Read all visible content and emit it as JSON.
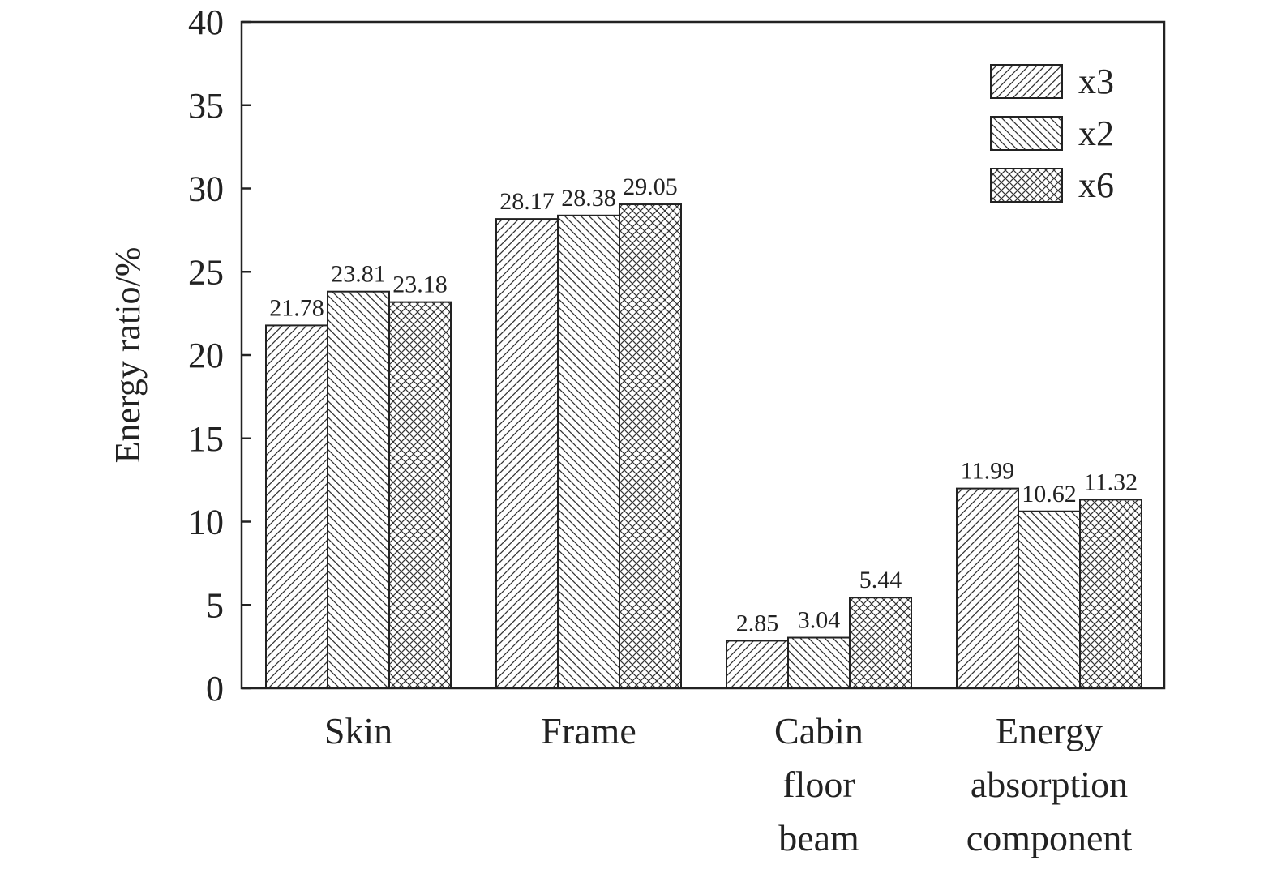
{
  "chart_data": {
    "type": "bar",
    "ylabel": "Energy ratio/%",
    "xlabel": "",
    "ylim": [
      0,
      40
    ],
    "yticks": [
      0,
      5,
      10,
      15,
      20,
      25,
      30,
      35,
      40
    ],
    "grid": false,
    "legend_position": "top-right",
    "categories": [
      [
        "Skin"
      ],
      [
        "Frame"
      ],
      [
        "Cabin",
        "floor",
        "beam"
      ],
      [
        "Energy",
        "absorption",
        "component"
      ]
    ],
    "series": [
      {
        "name": "x3",
        "pattern": "diagonal-right",
        "values": [
          21.78,
          28.17,
          2.85,
          11.99
        ],
        "labels": [
          "21.78",
          "28.17",
          "2.85",
          "11.99"
        ]
      },
      {
        "name": "x2",
        "pattern": "diagonal-left",
        "values": [
          23.81,
          28.38,
          3.04,
          10.62
        ],
        "labels": [
          "23.81",
          "28.38",
          "3.04",
          "10.62"
        ]
      },
      {
        "name": "x6",
        "pattern": "crosshatch",
        "values": [
          23.18,
          29.05,
          5.44,
          11.32
        ],
        "labels": [
          "23.18",
          "29.05",
          "5.44",
          "11.32"
        ]
      }
    ],
    "colors": {
      "ink": "#222222",
      "background": "#ffffff"
    }
  }
}
